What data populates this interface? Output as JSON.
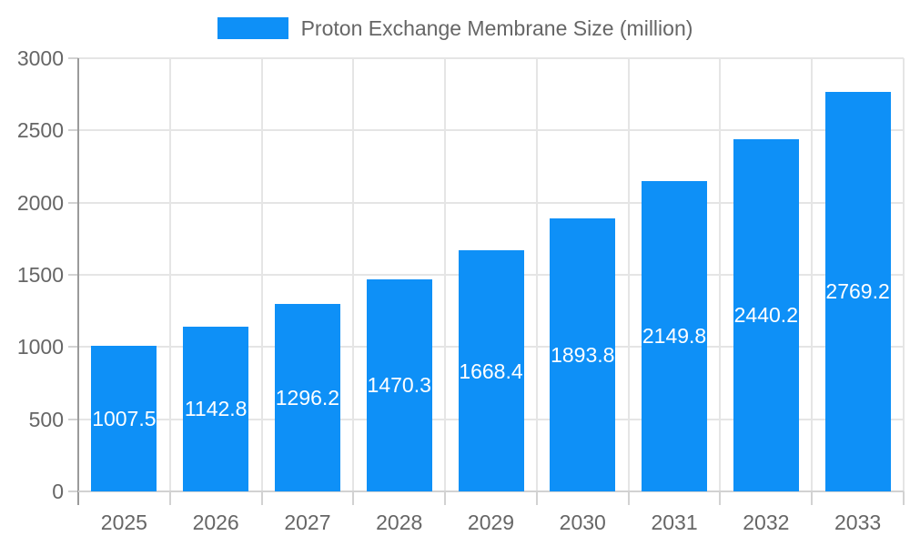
{
  "legend": {
    "label": "Proton Exchange Membrane Size (million)"
  },
  "chart_data": {
    "type": "bar",
    "title": "Proton Exchange Membrane Size (million)",
    "categories": [
      "2025",
      "2026",
      "2027",
      "2028",
      "2029",
      "2030",
      "2031",
      "2032",
      "2033"
    ],
    "series": [
      {
        "name": "Proton Exchange Membrane Size (million)",
        "values": [
          1007.5,
          1142.8,
          1296.2,
          1470.3,
          1668.4,
          1893.8,
          2149.8,
          2440.2,
          2769.2
        ]
      }
    ],
    "value_labels": [
      "1007.5",
      "1142.8",
      "1296.2",
      "1470.3",
      "1668.4",
      "1893.8",
      "2149.8",
      "2440.2",
      "2769.2"
    ],
    "xlabel": "",
    "ylabel": "",
    "ylim": [
      0,
      3000
    ],
    "yticks": [
      0,
      500,
      1000,
      1500,
      2000,
      2500,
      3000
    ],
    "grid": true,
    "legend_position": "top",
    "colors": {
      "bar": "#0e90f7",
      "grid": "#e5e5e5",
      "axis": "#9b9b9b",
      "tick": "#d2d2d2",
      "text": "#666666",
      "value_label": "#ffffff",
      "background": "#ffffff"
    }
  }
}
